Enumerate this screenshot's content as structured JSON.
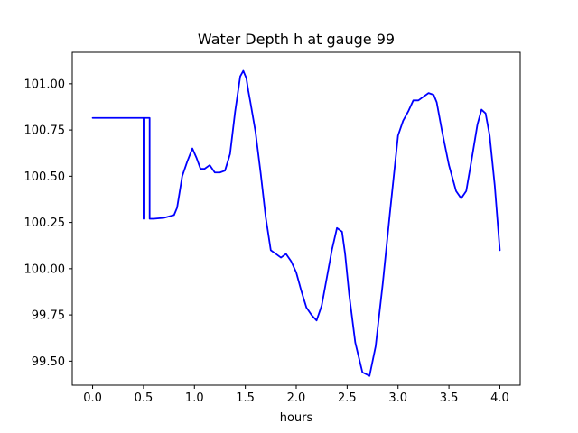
{
  "chart_data": {
    "type": "line",
    "title": "Water Depth h at gauge 99",
    "xlabel": "hours",
    "ylabel": "",
    "xlim": [
      -0.2,
      4.2
    ],
    "ylim": [
      99.37,
      101.17
    ],
    "xticks": [
      0.0,
      0.5,
      1.0,
      1.5,
      2.0,
      2.5,
      3.0,
      3.5,
      4.0
    ],
    "xtick_labels": [
      "0.0",
      "0.5",
      "1.0",
      "1.5",
      "2.0",
      "2.5",
      "3.0",
      "3.5",
      "4.0"
    ],
    "yticks": [
      99.5,
      99.75,
      100.0,
      100.25,
      100.5,
      100.75,
      101.0
    ],
    "ytick_labels": [
      "99.50",
      "99.75",
      "100.00",
      "100.25",
      "100.50",
      "100.75",
      "101.00"
    ],
    "grid": false,
    "series": [
      {
        "color": "#0000ff",
        "x": [
          0.0,
          0.5,
          0.5,
          0.51,
          0.51,
          0.56,
          0.56,
          0.57,
          0.6,
          0.7,
          0.8,
          0.83,
          0.88,
          0.93,
          0.98,
          1.02,
          1.06,
          1.1,
          1.15,
          1.2,
          1.25,
          1.3,
          1.35,
          1.4,
          1.45,
          1.48,
          1.51,
          1.53,
          1.55,
          1.6,
          1.65,
          1.7,
          1.75,
          1.8,
          1.85,
          1.9,
          1.95,
          2.0,
          2.05,
          2.1,
          2.15,
          2.2,
          2.25,
          2.3,
          2.35,
          2.4,
          2.45,
          2.48,
          2.52,
          2.58,
          2.65,
          2.72,
          2.78,
          2.85,
          2.92,
          3.0,
          3.05,
          3.1,
          3.15,
          3.2,
          3.25,
          3.3,
          3.35,
          3.38,
          3.43,
          3.5,
          3.57,
          3.62,
          3.67,
          3.72,
          3.78,
          3.82,
          3.86,
          3.9,
          3.95,
          4.0
        ],
        "y": [
          100.815,
          100.815,
          100.27,
          100.27,
          100.815,
          100.815,
          100.27,
          100.27,
          100.27,
          100.275,
          100.29,
          100.33,
          100.5,
          100.58,
          100.65,
          100.6,
          100.54,
          100.54,
          100.56,
          100.52,
          100.52,
          100.53,
          100.62,
          100.85,
          101.04,
          101.07,
          101.03,
          100.96,
          100.9,
          100.74,
          100.52,
          100.28,
          100.1,
          100.08,
          100.06,
          100.08,
          100.04,
          99.98,
          99.88,
          99.79,
          99.75,
          99.72,
          99.8,
          99.95,
          100.1,
          100.22,
          100.2,
          100.08,
          99.86,
          99.6,
          99.44,
          99.42,
          99.58,
          99.92,
          100.3,
          100.72,
          100.8,
          100.85,
          100.91,
          100.91,
          100.93,
          100.95,
          100.94,
          100.9,
          100.75,
          100.56,
          100.42,
          100.38,
          100.42,
          100.58,
          100.78,
          100.86,
          100.84,
          100.72,
          100.45,
          100.1
        ]
      }
    ]
  }
}
